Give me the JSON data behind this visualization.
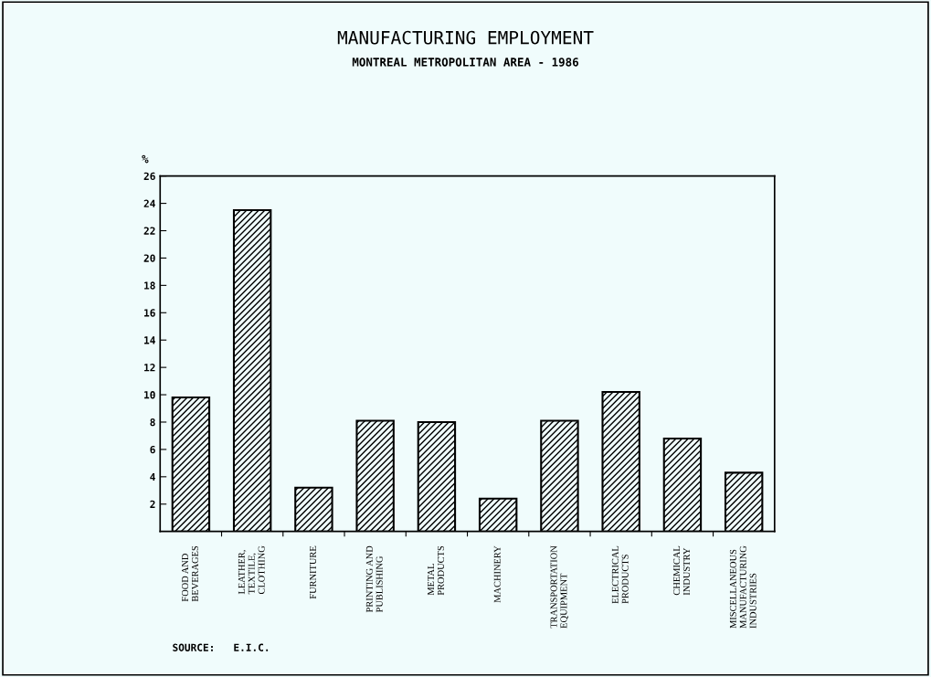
{
  "chart_data": {
    "type": "bar",
    "title": "MANUFACTURING EMPLOYMENT",
    "subtitle": "MONTREAL METROPOLITAN AREA - 1986",
    "ylabel": "%",
    "categories": [
      "FOOD AND\nBEVERAGES",
      "LEATHER,\nTEXTILE,\nCLOTHING",
      "FURNITURE",
      "PRINTING AND\nPUBLISHING",
      "METAL\nPRODUCTS",
      "MACHINERY",
      "TRANSPORTATION\nEQUIPMENT",
      "ELECTRICAL\nPRODUCTS",
      "CHEMICAL\nINDUSTRY",
      "MISCELLANEOUS\nMANUFACTURING\nINDUSTRIES"
    ],
    "values": [
      9.8,
      23.5,
      3.2,
      8.1,
      8.0,
      2.4,
      8.1,
      10.2,
      6.8,
      4.3
    ],
    "color": "#000000",
    "ylim": [
      0,
      26
    ],
    "yticks": [
      2,
      4,
      6,
      8,
      10,
      12,
      14,
      16,
      18,
      20,
      22,
      24,
      26
    ],
    "grid": false,
    "legend": false,
    "annotations": [
      "SOURCE:   E.I.C."
    ]
  }
}
